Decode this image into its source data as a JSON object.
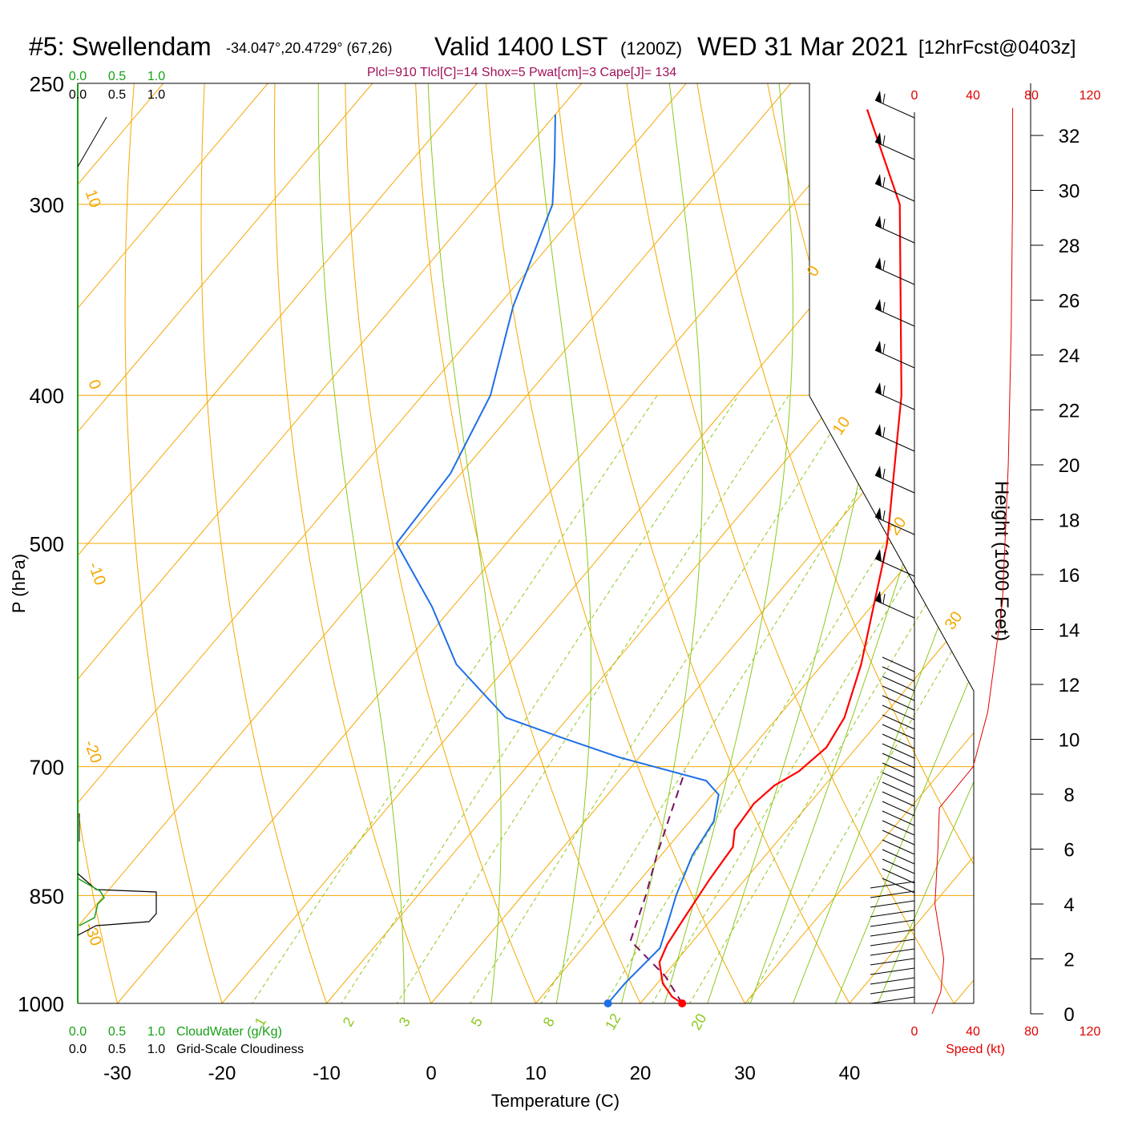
{
  "header": {
    "station": "#5: Swellendam",
    "coords": "-34.047°,20.4729° (67,26)",
    "valid": "Valid 1400 LST",
    "zulu": "(1200Z)",
    "date": "WED 31 Mar 2021",
    "forecast": "[12hrFcst@0403z]",
    "params": "Plcl=910 Tlcl[C]=14 Shox=5 Pwat[cm]=3 Cape[J]= 134"
  },
  "colors": {
    "temperature": "#ff0000",
    "dewpoint": "#1e6fe6",
    "parcel": "#7a1060",
    "isotherm": "#f5a800",
    "moist_adiabat": "#8cc81e",
    "mixing_ratio": "#8cc81e",
    "cloudwater": "#16a016",
    "speed": "#e00000",
    "header_params": "#a0105a"
  },
  "chart_data": {
    "type": "skew-t",
    "xlabel": "Temperature (C)",
    "ylabel": "P (hPa)",
    "y2label": "Height (1000 Feet)",
    "x_ticks": [
      -30,
      -20,
      -10,
      0,
      10,
      20,
      30,
      40
    ],
    "p_ticks": [
      250,
      300,
      400,
      500,
      700,
      850,
      1000
    ],
    "p_range": [
      250,
      1000
    ],
    "isotherm_labels": [
      "10",
      "0",
      "-10",
      "-20",
      "-30",
      "0",
      "10",
      "20",
      "30"
    ],
    "mixing_ratio_labels": [
      "1",
      "2",
      "3",
      "5",
      "8",
      "12",
      "20"
    ],
    "height_ticks": [
      "0",
      "2",
      "4",
      "6",
      "8",
      "10",
      "12",
      "14",
      "16",
      "18",
      "20",
      "22",
      "24",
      "26",
      "28",
      "30",
      "32"
    ],
    "temperature_profile": [
      {
        "p": 1000,
        "t": 24.0
      },
      {
        "p": 990,
        "t": 22.5
      },
      {
        "p": 970,
        "t": 20.5
      },
      {
        "p": 940,
        "t": 18.5
      },
      {
        "p": 915,
        "t": 17.8
      },
      {
        "p": 880,
        "t": 17.3
      },
      {
        "p": 830,
        "t": 16.6
      },
      {
        "p": 790,
        "t": 16.2
      },
      {
        "p": 770,
        "t": 15.0
      },
      {
        "p": 740,
        "t": 14.7
      },
      {
        "p": 720,
        "t": 15.2
      },
      {
        "p": 705,
        "t": 16.4
      },
      {
        "p": 680,
        "t": 17.1
      },
      {
        "p": 650,
        "t": 16.4
      },
      {
        "p": 600,
        "t": 13.7
      },
      {
        "p": 500,
        "t": 6.4
      },
      {
        "p": 400,
        "t": -4.2
      },
      {
        "p": 300,
        "t": -19.8
      },
      {
        "p": 260,
        "t": -30.6
      }
    ],
    "dewpoint_profile": [
      {
        "p": 1000,
        "t": 16.9
      },
      {
        "p": 970,
        "t": 16.9
      },
      {
        "p": 920,
        "t": 17.4
      },
      {
        "p": 880,
        "t": 15.9
      },
      {
        "p": 850,
        "t": 14.7
      },
      {
        "p": 800,
        "t": 13.0
      },
      {
        "p": 760,
        "t": 12.3
      },
      {
        "p": 730,
        "t": 10.6
      },
      {
        "p": 715,
        "t": 8.3
      },
      {
        "p": 690,
        "t": -2.0
      },
      {
        "p": 670,
        "t": -9.0
      },
      {
        "p": 650,
        "t": -16.0
      },
      {
        "p": 600,
        "t": -25.0
      },
      {
        "p": 550,
        "t": -32.0
      },
      {
        "p": 500,
        "t": -40.5
      },
      {
        "p": 450,
        "t": -41.0
      },
      {
        "p": 400,
        "t": -43.5
      },
      {
        "p": 350,
        "t": -48.5
      },
      {
        "p": 300,
        "t": -53.0
      },
      {
        "p": 280,
        "t": -56.5
      },
      {
        "p": 262,
        "t": -60.0
      }
    ],
    "parcel_profile": [
      {
        "p": 1000,
        "t": 24.0
      },
      {
        "p": 960,
        "t": 20.2
      },
      {
        "p": 910,
        "t": 14.0
      },
      {
        "p": 850,
        "t": 11.8
      },
      {
        "p": 800,
        "t": 9.6
      },
      {
        "p": 750,
        "t": 7.5
      },
      {
        "p": 705,
        "t": 5.5
      }
    ],
    "surface_temperature": 24.0,
    "surface_dewpoint": 16.9,
    "wind_speed_kt": [
      {
        "h": 0.0,
        "s": 12
      },
      {
        "h": 0.8,
        "s": 18
      },
      {
        "h": 2.0,
        "s": 20
      },
      {
        "h": 4.0,
        "s": 14
      },
      {
        "h": 6.0,
        "s": 16
      },
      {
        "h": 7.5,
        "s": 17
      },
      {
        "h": 9.0,
        "s": 40
      },
      {
        "h": 11.0,
        "s": 50
      },
      {
        "h": 15.0,
        "s": 60
      },
      {
        "h": 20.0,
        "s": 64
      },
      {
        "h": 25.0,
        "s": 66
      },
      {
        "h": 30.0,
        "s": 67
      },
      {
        "h": 33.0,
        "s": 67
      }
    ],
    "speed_axis_ticks": [
      "0",
      "40",
      "80",
      "120"
    ],
    "speed_label": "Speed (kt)",
    "cloudwater_ticks": [
      "0.0",
      "0.5",
      "1.0"
    ],
    "cloudwater_label": "CloudWater (g/Kg)",
    "cloudiness_ticks": [
      "0.0",
      "0.5",
      "1.0"
    ],
    "cloudiness_label": "Grid-Scale Cloudiness",
    "grid": true
  }
}
